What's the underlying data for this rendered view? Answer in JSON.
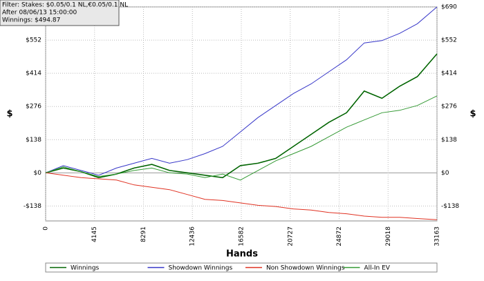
{
  "chart_data": {
    "type": "line",
    "annotations": [
      "Filter: Stakes: $0.05/0.1 NL,€0.05/0.1 NL",
      "After 08/06/13 15:00:00",
      "Winnings: $494.87"
    ],
    "xlabel": "Hands",
    "ylabel": "$",
    "y2label": "$",
    "x": [
      0,
      1500,
      3000,
      4500,
      6000,
      7500,
      9000,
      10500,
      12000,
      13500,
      15000,
      16500,
      18000,
      19500,
      21000,
      22500,
      24000,
      25500,
      27000,
      28500,
      30000,
      31500,
      33163
    ],
    "series": [
      {
        "name": "Winnings",
        "color": "#006400",
        "values": [
          0,
          20,
          5,
          -20,
          -5,
          20,
          35,
          10,
          0,
          -10,
          -20,
          30,
          40,
          60,
          110,
          160,
          210,
          250,
          340,
          310,
          360,
          400,
          494.87
        ]
      },
      {
        "name": "Showdown Winnings",
        "color": "#3535c8",
        "values": [
          0,
          30,
          10,
          -10,
          20,
          40,
          60,
          40,
          55,
          80,
          110,
          170,
          230,
          280,
          330,
          370,
          420,
          470,
          540,
          550,
          580,
          620,
          690
        ]
      },
      {
        "name": "Non Showdown Winnings",
        "color": "#e03020",
        "values": [
          0,
          -10,
          -20,
          -25,
          -30,
          -50,
          -60,
          -70,
          -90,
          -110,
          -115,
          -125,
          -135,
          -140,
          -150,
          -155,
          -165,
          -170,
          -180,
          -185,
          -185,
          -190,
          -195
        ]
      },
      {
        "name": "All-In EV",
        "color": "#339933",
        "values": [
          0,
          25,
          5,
          -15,
          -5,
          10,
          20,
          0,
          -5,
          -20,
          -5,
          -30,
          10,
          50,
          80,
          110,
          150,
          190,
          220,
          250,
          260,
          280,
          320
        ]
      }
    ],
    "xlim": [
      0,
      33163
    ],
    "xticks": [
      0,
      4145,
      8291,
      12436,
      16582,
      20727,
      24872,
      29018,
      33163
    ],
    "ylim": [
      -200,
      690
    ],
    "yticks": [
      {
        "value": -138,
        "label": "-$138"
      },
      {
        "value": 0,
        "label": "$0"
      },
      {
        "value": 138,
        "label": "$138"
      },
      {
        "value": 276,
        "label": "$276"
      },
      {
        "value": 414,
        "label": "$414"
      },
      {
        "value": 552,
        "label": "$552"
      },
      {
        "value": 690,
        "label": "$690"
      }
    ],
    "grid": true
  }
}
